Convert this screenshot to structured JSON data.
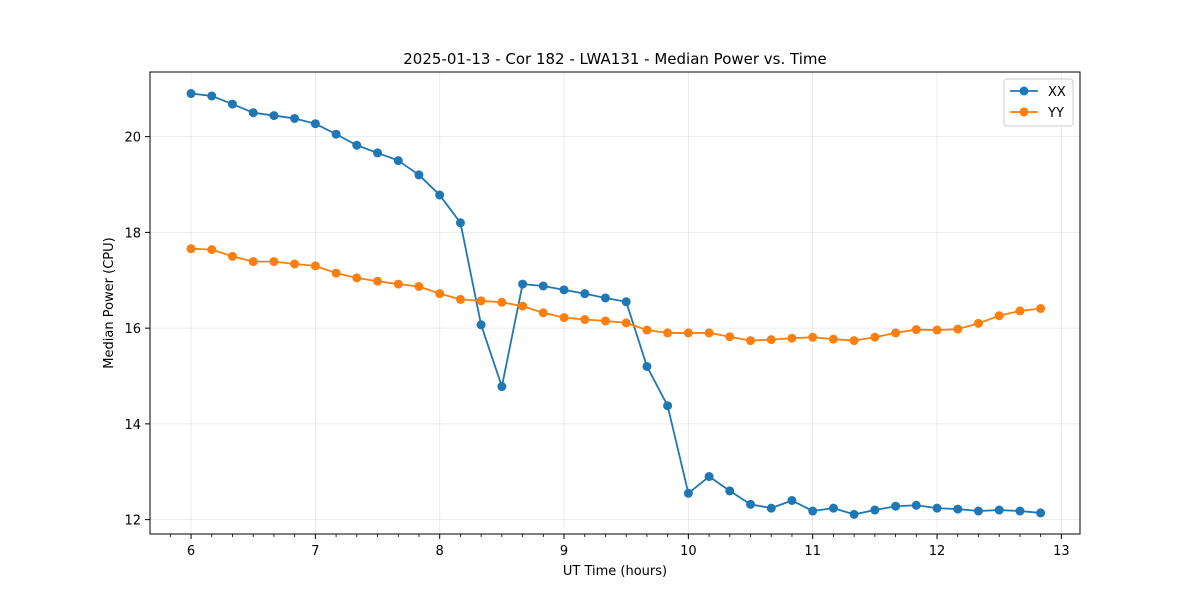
{
  "chart_data": {
    "type": "line",
    "title": "2025-01-13 - Cor 182 - LWA131 - Median Power vs. Time",
    "xlabel": "UT Time (hours)",
    "ylabel": "Median Power (CPU)",
    "xlim": [
      5.67,
      13.15
    ],
    "ylim": [
      11.7,
      21.35
    ],
    "xticks": [
      6,
      7,
      8,
      9,
      10,
      11,
      12,
      13
    ],
    "yticks": [
      12,
      14,
      16,
      18,
      20
    ],
    "grid": true,
    "legend_position": "top-right",
    "x": [
      6.0,
      6.167,
      6.333,
      6.5,
      6.667,
      6.833,
      7.0,
      7.167,
      7.333,
      7.5,
      7.667,
      7.833,
      8.0,
      8.167,
      8.333,
      8.5,
      8.667,
      8.833,
      9.0,
      9.167,
      9.333,
      9.5,
      9.667,
      9.833,
      10.0,
      10.167,
      10.333,
      10.5,
      10.667,
      10.833,
      11.0,
      11.167,
      11.333,
      11.5,
      11.667,
      11.833,
      12.0,
      12.167,
      12.333,
      12.5,
      12.667,
      12.833
    ],
    "series": [
      {
        "name": "XX",
        "color": "#1f77b4",
        "values": [
          20.9,
          20.85,
          20.68,
          20.5,
          20.44,
          20.38,
          20.27,
          20.05,
          19.82,
          19.66,
          19.5,
          19.2,
          18.78,
          18.2,
          16.07,
          14.78,
          16.92,
          16.88,
          16.8,
          16.72,
          16.63,
          16.55,
          15.2,
          14.38,
          12.55,
          12.9,
          12.6,
          12.32,
          12.24,
          12.4,
          12.18,
          12.24,
          12.11,
          12.2,
          12.28,
          12.3,
          12.24,
          12.22,
          12.18,
          12.2,
          12.18,
          12.14
        ]
      },
      {
        "name": "YY",
        "color": "#ff7f0e",
        "values": [
          17.66,
          17.64,
          17.5,
          17.39,
          17.39,
          17.34,
          17.3,
          17.15,
          17.05,
          16.98,
          16.92,
          16.87,
          16.72,
          16.6,
          16.57,
          16.54,
          16.46,
          16.32,
          16.22,
          16.18,
          16.15,
          16.11,
          15.96,
          15.9,
          15.9,
          15.9,
          15.82,
          15.74,
          15.76,
          15.79,
          15.81,
          15.77,
          15.74,
          15.81,
          15.9,
          15.97,
          15.96,
          15.98,
          16.1,
          16.26,
          16.36,
          16.41
        ]
      }
    ]
  }
}
